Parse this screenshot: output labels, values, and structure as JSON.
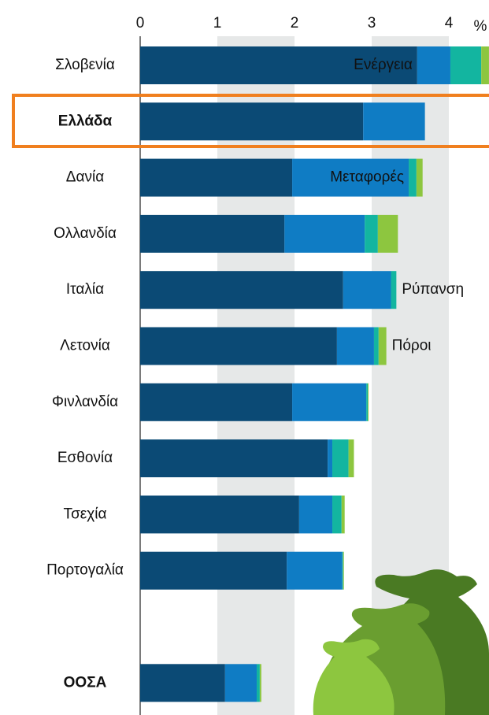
{
  "chart_data": {
    "type": "bar",
    "orientation": "horizontal",
    "stacked": true,
    "x_label": "%",
    "categories": [
      "Σλοβενία",
      "Ελλάδα",
      "Δανία",
      "Ολλανδία",
      "Ιταλία",
      "Λετονία",
      "Φινλανδία",
      "Εσθονία",
      "Τσεχία",
      "Πορτογαλία",
      null,
      "ΟΟΣΑ"
    ],
    "series": [
      {
        "name": "Ενέργεια",
        "color": "#0b4a75",
        "values": [
          3.59,
          2.89,
          1.97,
          1.87,
          2.63,
          2.55,
          1.97,
          2.43,
          2.06,
          1.9,
          null,
          1.1
        ]
      },
      {
        "name": "Μεταφορές",
        "color": "#0f7cc4",
        "values": [
          0.43,
          0.8,
          1.51,
          1.04,
          0.62,
          0.48,
          0.96,
          0.06,
          0.43,
          0.72,
          null,
          0.41
        ]
      },
      {
        "name": "Ρύπανση",
        "color": "#13b5a0",
        "values": [
          0.4,
          0,
          0.1,
          0.17,
          0.07,
          0.06,
          0.02,
          0.21,
          0.12,
          0.01,
          null,
          0.04
        ]
      },
      {
        "name": "Πόροι",
        "color": "#8dc63f",
        "values": [
          0.1,
          0,
          0.08,
          0.26,
          0,
          0.1,
          0.01,
          0.07,
          0.04,
          0.01,
          null,
          0.02
        ]
      }
    ],
    "xlim": [
      0,
      4.5
    ],
    "xticks": [
      0,
      1,
      2,
      3,
      4
    ],
    "grid": "bands"
  }
}
